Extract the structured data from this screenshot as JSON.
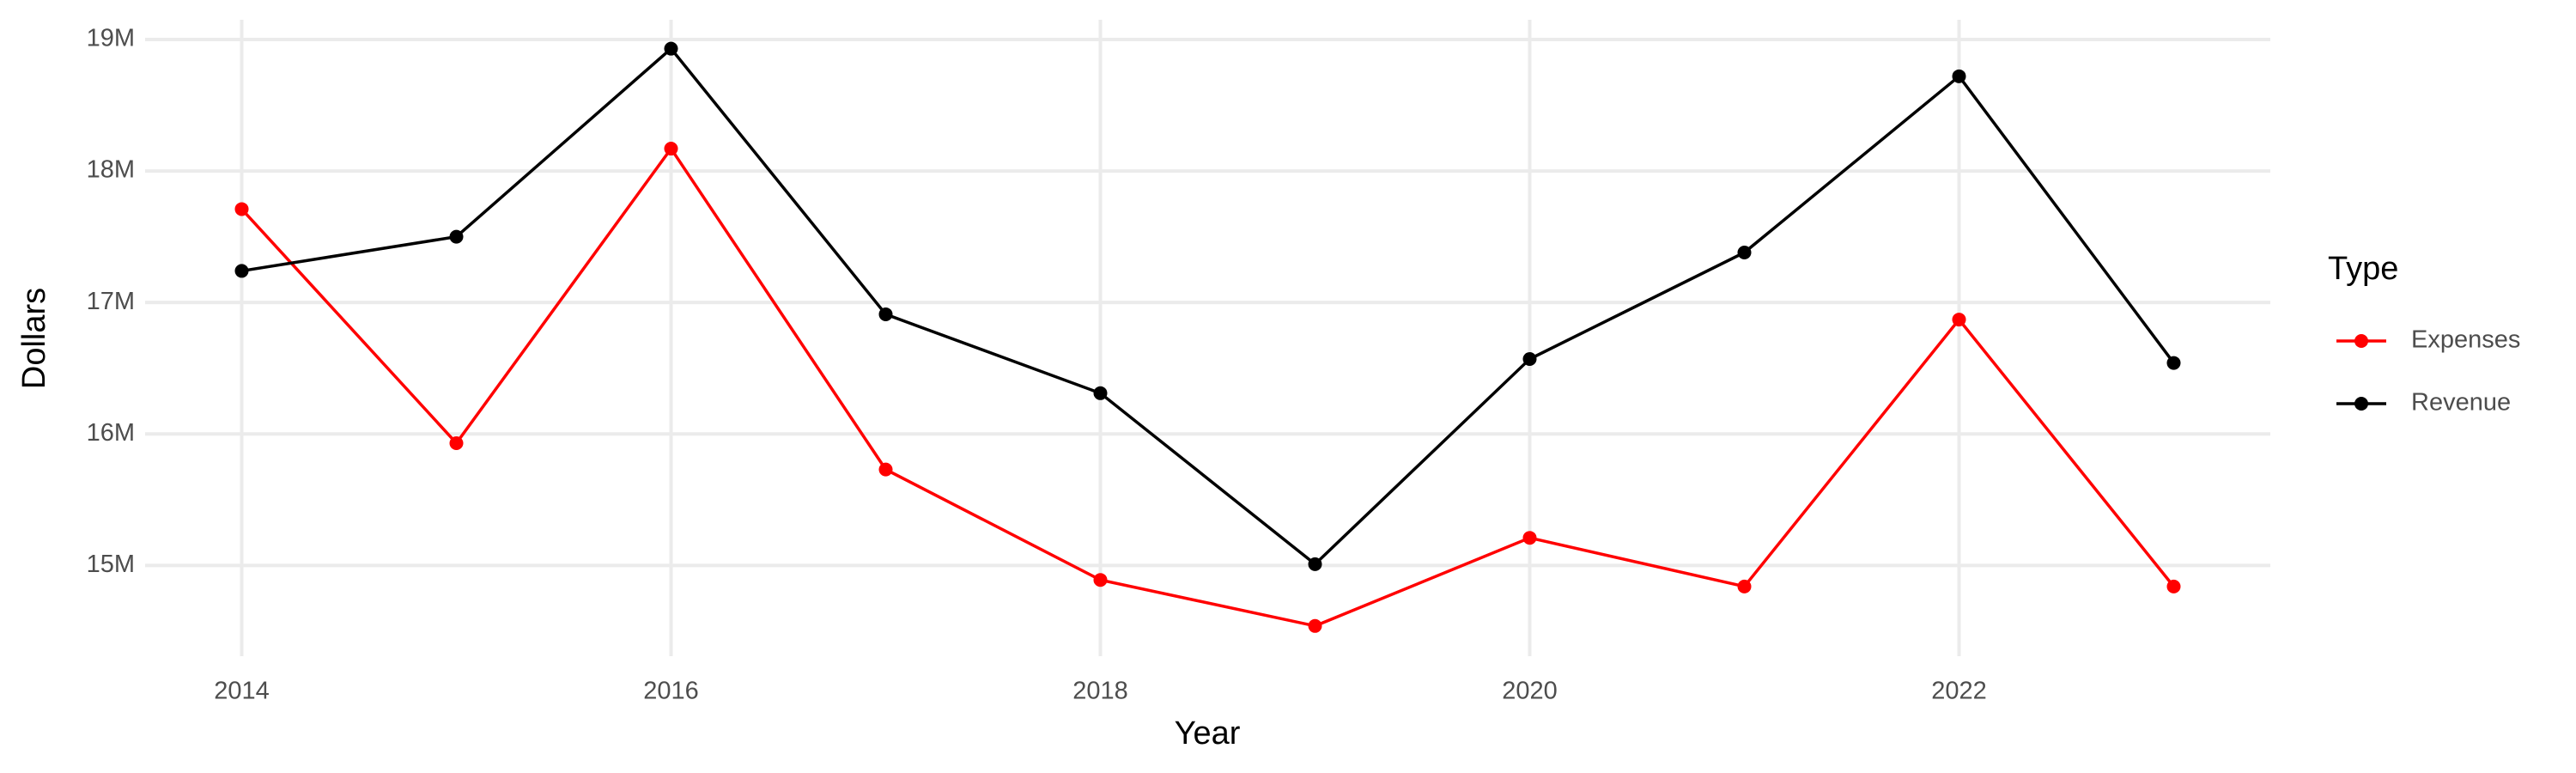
{
  "chart_data": {
    "type": "line",
    "x_label": "Year",
    "y_label": "Dollars",
    "legend_title": "Type",
    "legend": "right",
    "grid": true,
    "x": [
      2014,
      2015,
      2016,
      2017,
      2018,
      2019,
      2020,
      2021,
      2022,
      2023
    ],
    "series": [
      {
        "name": "Expenses",
        "color": "#ff0000",
        "values": [
          17710000,
          15930000,
          18170000,
          15730000,
          14890000,
          14540000,
          15210000,
          14840000,
          16870000,
          14840000
        ]
      },
      {
        "name": "Revenue",
        "color": "#000000",
        "values": [
          17240000,
          17500000,
          18930000,
          16910000,
          16310000,
          15010000,
          16570000,
          17380000,
          18720000,
          16540000
        ]
      }
    ],
    "xlim": [
      2013.55,
      2023.45
    ],
    "xticks": [
      2014,
      2016,
      2018,
      2020,
      2022
    ],
    "ylim": [
      14310000,
      19150000
    ],
    "yticks": [
      {
        "value": 15000000,
        "label": "15M"
      },
      {
        "value": 16000000,
        "label": "16M"
      },
      {
        "value": 17000000,
        "label": "17M"
      },
      {
        "value": 18000000,
        "label": "18M"
      },
      {
        "value": 19000000,
        "label": "19M"
      }
    ]
  }
}
